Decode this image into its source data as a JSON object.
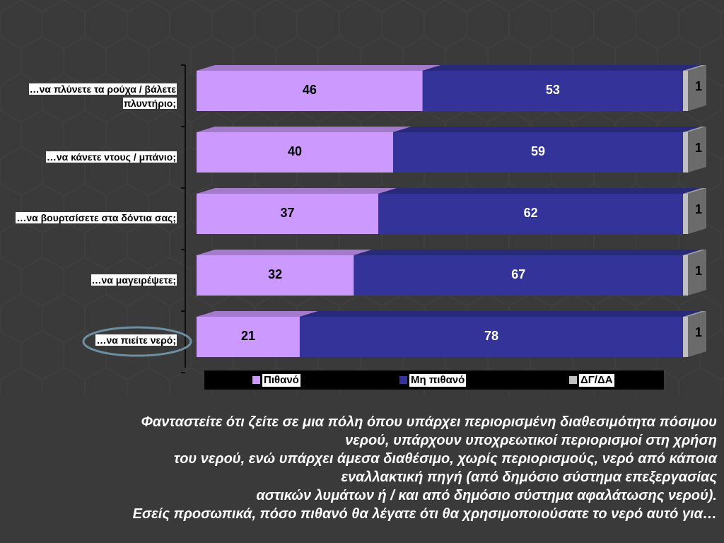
{
  "chart_data": {
    "type": "bar",
    "orientation": "horizontal",
    "stacked": "percent",
    "categories": [
      "…να πλύνετε τα ρούχα / βάλετε πλυντήριο;",
      "…να κάνετε ντους / μπάνιο;",
      "…να βουρτσίσετε στα δόντια σας;",
      "…να μαγειρέψετε;",
      "…να πιείτε νερό;"
    ],
    "series": [
      {
        "name": "Πιθανό",
        "values": [
          46,
          40,
          37,
          32,
          21
        ],
        "color": "#cc99ff"
      },
      {
        "name": "Μη πιθανό",
        "values": [
          53,
          59,
          62,
          67,
          78
        ],
        "color": "#333399"
      },
      {
        "name": "ΔΓ/ΔΑ",
        "values": [
          1,
          1,
          1,
          1,
          1
        ],
        "color": "#c0c0c0"
      }
    ],
    "xlim": [
      0,
      100
    ],
    "data_labels": true,
    "legend_position": "bottom",
    "highlighted_category": "…να πιείτε νερό;"
  },
  "question_lines": [
    "Φανταστείτε ότι ζείτε σε μια πόλη όπου υπάρχει περιορισμένη διαθεσιμότητα πόσιμου",
    "νερού, υπάρχουν υποχρεωτικοί περιορισμοί στη χρήση",
    "του νερού, ενώ υπάρχει άμεσα διαθέσιμο, χωρίς περιορισμούς, νερό από κάποια",
    "εναλλακτική πηγή (από δημόσιο σύστημα επεξεργασίας",
    "αστικών λυμάτων ή / και από δημόσιο σύστημα αφαλάτωσης νερού).",
    "Εσείς προσωπικά, πόσο πιθανό θα λέγατε ότι θα χρησιμοποιούσατε το νερό αυτό για…"
  ]
}
